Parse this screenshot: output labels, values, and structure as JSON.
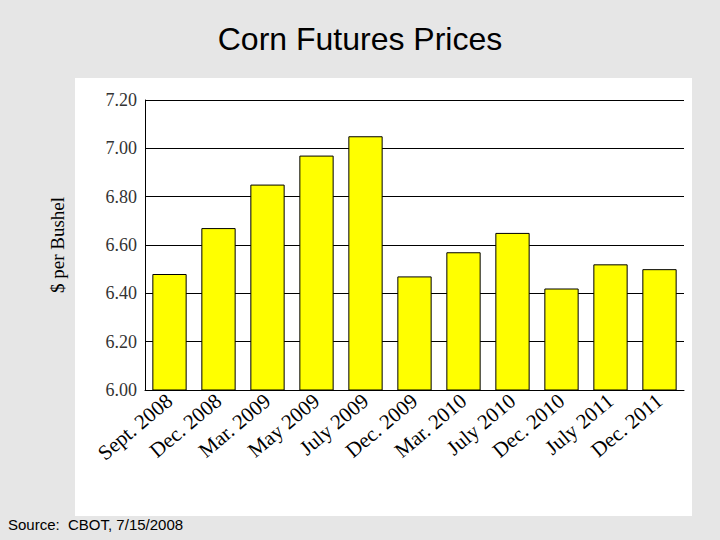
{
  "chart_data": {
    "type": "bar",
    "title": "Corn Futures Prices",
    "y_label": "$ per Bushel",
    "annotation": "Source:  CBOT, 7/15/2008",
    "categories": [
      "Sept. 2008",
      "Dec. 2008",
      "Mar. 2009",
      "May 2009",
      "July 2009",
      "Dec. 2009",
      "Mar. 2010",
      "July 2010",
      "Dec. 2010",
      "July 2011",
      "Dec. 2011"
    ],
    "values": [
      6.48,
      6.67,
      6.85,
      6.97,
      7.05,
      6.47,
      6.57,
      6.65,
      6.42,
      6.52,
      6.5
    ],
    "color": "#ffff00",
    "ylim": [
      6.0,
      7.2
    ],
    "yticks": [
      {
        "value": 6.0,
        "label": "6.00"
      },
      {
        "value": 6.2,
        "label": "6.20"
      },
      {
        "value": 6.4,
        "label": "6.40"
      },
      {
        "value": 6.6,
        "label": "6.60"
      },
      {
        "value": 6.8,
        "label": "6.80"
      },
      {
        "value": 7.0,
        "label": "7.00"
      },
      {
        "value": 7.2,
        "label": "7.20"
      }
    ],
    "grid": true
  }
}
